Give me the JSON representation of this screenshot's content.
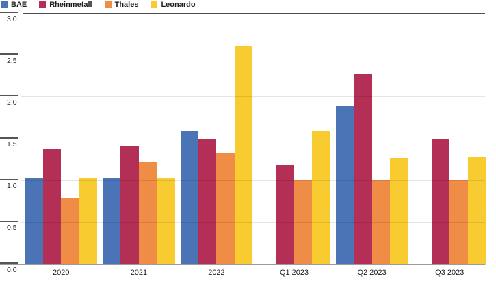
{
  "legend": {
    "position": "top-left",
    "items": [
      {
        "label": "BAE",
        "color": "#4a74b5"
      },
      {
        "label": "Rheinmetall",
        "color": "#b42f55"
      },
      {
        "label": "Thales",
        "color": "#ef8d46"
      },
      {
        "label": "Leonardo",
        "color": "#f8cc30"
      }
    ]
  },
  "chart_data": {
    "type": "bar",
    "title": "",
    "categories": [
      "2020",
      "2021",
      "2022",
      "Q1 2023",
      "Q2 2023",
      "Q3 2023"
    ],
    "series": [
      {
        "name": "BAE",
        "color": "#4a74b5",
        "values": [
          1.03,
          1.03,
          1.59,
          null,
          1.89,
          null
        ]
      },
      {
        "name": "Rheinmetall",
        "color": "#b42f55",
        "values": [
          1.38,
          1.41,
          1.49,
          1.19,
          2.28,
          1.49
        ]
      },
      {
        "name": "Thales",
        "color": "#ef8d46",
        "values": [
          0.8,
          1.22,
          1.33,
          1.0,
          1.0,
          1.0
        ]
      },
      {
        "name": "Leonardo",
        "color": "#f8cc30",
        "values": [
          1.03,
          1.03,
          2.6,
          1.59,
          1.27,
          1.29
        ]
      }
    ],
    "xlabel": "",
    "ylabel": "",
    "ylim": [
      0,
      3.0
    ],
    "y_ticks": [
      "3.0",
      "2.5",
      "2.0",
      "1.5",
      "1.0",
      "0.5",
      "0.0"
    ],
    "grid": true,
    "legend_position": "top-left",
    "colors": {
      "gridline": "#e5e5e5",
      "axis_top_line": "#4d4d4d",
      "baseline": "#9b9b9b",
      "text": "#1d1d1d",
      "background": "#ffffff"
    }
  }
}
